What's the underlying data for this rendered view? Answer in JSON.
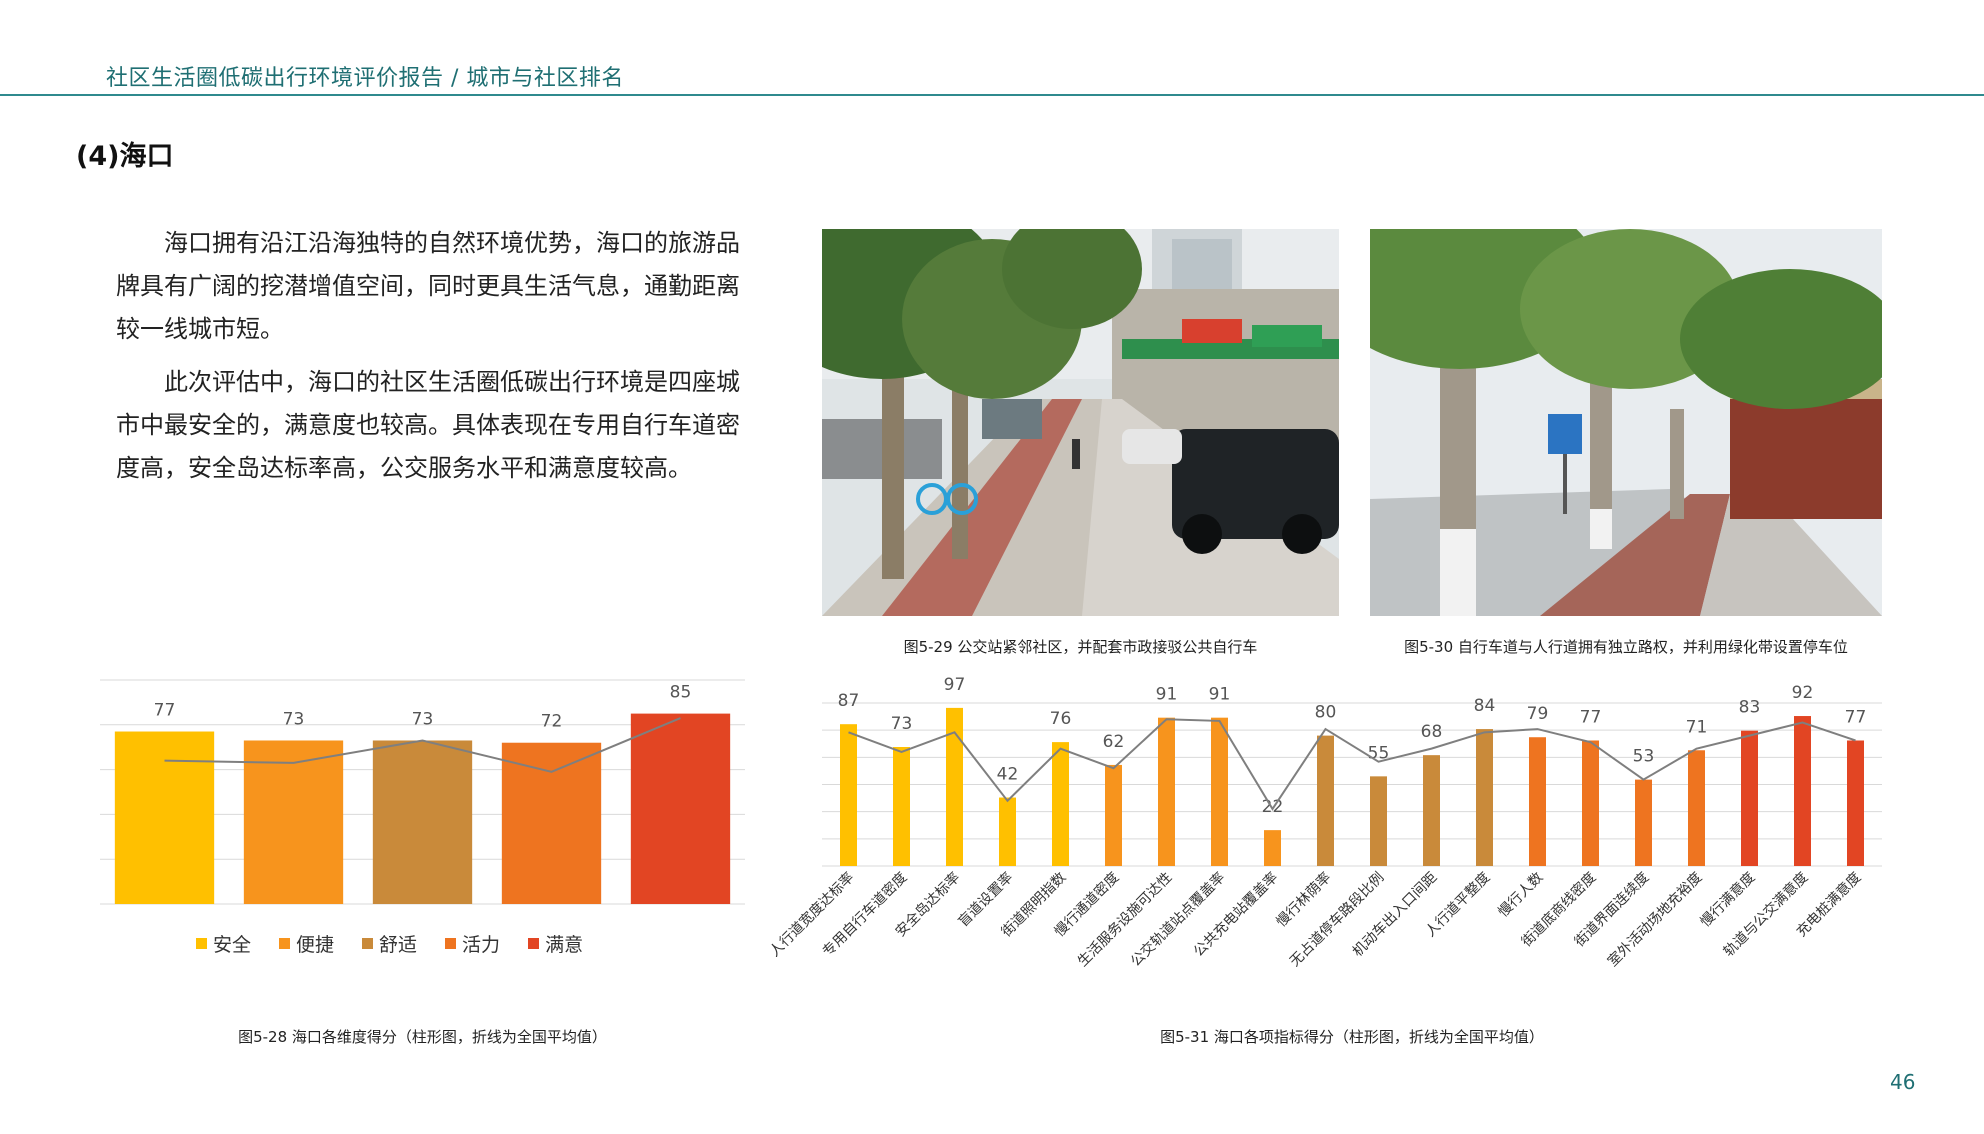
{
  "header": {
    "title": "社区生活圈低碳出行环境评价报告 / 城市与社区排名"
  },
  "section": {
    "title": "(4)海口"
  },
  "body": {
    "paragraphs": [
      "海口拥有沿江沿海独特的自然环境优势，海口的旅游品牌具有广阔的挖潜增值空间，同时更具生活气息，通勤距离较一线城市短。",
      "此次评估中，海口的社区生活圈低碳出行环境是四座城市中最安全的，满意度也较高。具体表现在专用自行车道密度高，安全岛达标率高，公交服务水平和满意度较高。"
    ]
  },
  "figures": {
    "photo1_caption": "图5-29 公交站紧邻社区，并配套市政接驳公共自行车",
    "photo2_caption": "图5-30 自行车道与人行道拥有独立路权，并利用绿化带设置停车位",
    "chart1_caption": "图5-28 海口各维度得分（柱形图，折线为全国平均值）",
    "chart2_caption": "图5-31 海口各项指标得分（柱形图，折线为全国平均值）"
  },
  "colors": {
    "安全": "#FFC000",
    "便捷": "#F7941D",
    "舒适": "#C98A3A",
    "活力": "#EE7420",
    "满意": "#E24523",
    "avg_line": "#7f7f7f",
    "grid": "#d9d9d9"
  },
  "chart_data": [
    {
      "type": "bar",
      "categories": [
        "安全",
        "便捷",
        "舒适",
        "活力",
        "满意"
      ],
      "values": [
        77,
        73,
        73,
        72,
        85
      ],
      "series": [
        {
          "name": "",
          "values": [
            77,
            73,
            73,
            72,
            85
          ]
        }
      ],
      "average_line": [
        64,
        63,
        73,
        59,
        83
      ],
      "ylim": [
        0,
        100
      ],
      "legend": [
        "安全",
        "便捷",
        "舒适",
        "活力",
        "满意"
      ],
      "legend_position": "bottom",
      "grid": true
    },
    {
      "type": "bar",
      "categories": [
        "人行道宽度达标率",
        "专用自行车道密度",
        "安全岛达标率",
        "盲道设置率",
        "街道照明指数",
        "慢行通道密度",
        "生活服务设施可达性",
        "公交轨道站点覆盖率",
        "公共充电站覆盖率",
        "慢行林荫率",
        "无占道停车路段比例",
        "机动车出入口间距",
        "人行道平整度",
        "慢行人数",
        "街道底商线密度",
        "街道界面连续度",
        "室外活动场地充裕度",
        "慢行满意度",
        "轨道与公交满意度",
        "充电桩满意度"
      ],
      "values": [
        87,
        73,
        97,
        42,
        76,
        62,
        91,
        91,
        22,
        80,
        55,
        68,
        84,
        79,
        77,
        53,
        71,
        83,
        92,
        77
      ],
      "average_line": [
        82,
        70,
        82,
        40,
        72,
        60,
        90,
        89,
        35,
        84,
        64,
        72,
        82,
        84,
        76,
        53,
        72,
        80,
        88,
        77
      ],
      "category_group": [
        "安全",
        "安全",
        "安全",
        "安全",
        "安全",
        "便捷",
        "便捷",
        "便捷",
        "便捷",
        "舒适",
        "舒适",
        "舒适",
        "舒适",
        "活力",
        "活力",
        "活力",
        "活力",
        "满意",
        "满意",
        "满意"
      ],
      "ylim": [
        0,
        100
      ],
      "grid": true
    }
  ],
  "page": {
    "number": "46"
  }
}
